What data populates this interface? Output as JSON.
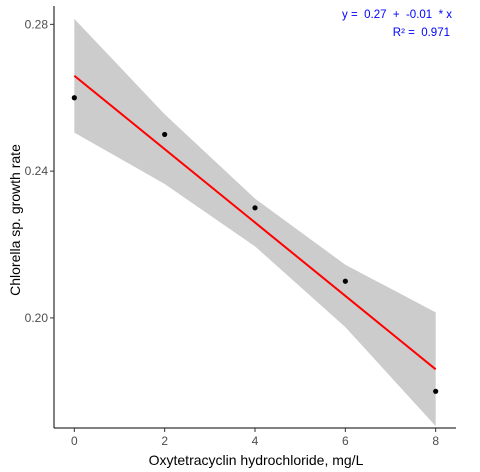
{
  "chart_data": {
    "type": "scatter",
    "xlabel": "Oxytetracyclin hydrochloride, mg/L",
    "ylabel": "Chlorella sp. growth rate",
    "xlim": [
      -0.45,
      8.45
    ],
    "ylim": [
      0.17,
      0.285
    ],
    "x_ticks": [
      0,
      2,
      4,
      6,
      8
    ],
    "x_tick_labels": [
      "0",
      "2",
      "4",
      "6",
      "8"
    ],
    "y_ticks": [
      0.2,
      0.24,
      0.28
    ],
    "y_tick_labels": [
      "0.20",
      "0.24",
      "0.28"
    ],
    "grid": false,
    "points": [
      {
        "x": 0,
        "y": 0.26
      },
      {
        "x": 2,
        "y": 0.25
      },
      {
        "x": 4,
        "y": 0.23
      },
      {
        "x": 6,
        "y": 0.21
      },
      {
        "x": 8,
        "y": 0.18
      }
    ],
    "fit_line": {
      "x0": 0,
      "y0": 0.266,
      "x1": 8,
      "y1": 0.186,
      "color": "#ff0000"
    },
    "confidence_band": {
      "color": "#cccccc",
      "upper": [
        {
          "x": 0,
          "y": 0.2815
        },
        {
          "x": 2,
          "y": 0.2555
        },
        {
          "x": 4,
          "y": 0.2325
        },
        {
          "x": 6,
          "y": 0.2145
        },
        {
          "x": 8,
          "y": 0.2015
        }
      ],
      "lower": [
        {
          "x": 0,
          "y": 0.2505
        },
        {
          "x": 2,
          "y": 0.2365
        },
        {
          "x": 4,
          "y": 0.2195
        },
        {
          "x": 6,
          "y": 0.1975
        },
        {
          "x": 8,
          "y": 0.1705
        }
      ]
    },
    "annotation": {
      "equation": "y =  0.27  +  -0.01  * x",
      "r_squared": "R² =  0.971",
      "color": "#0000ff"
    },
    "point_color": "#000000",
    "axis_color": "#000000"
  }
}
